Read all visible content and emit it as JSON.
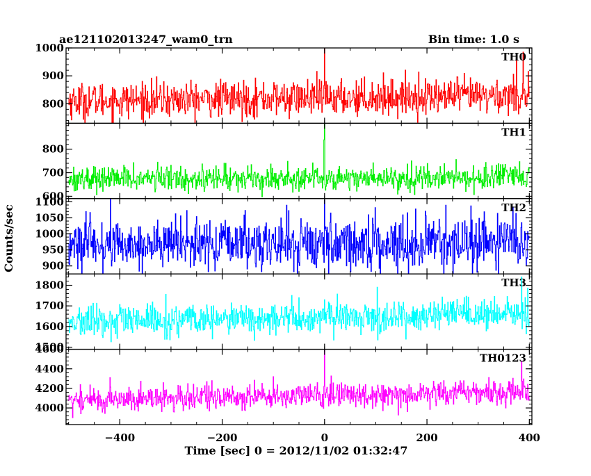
{
  "header": {
    "title": "ae121102013247_wam0_trn",
    "bin_time": "Bin time: 1.0 s"
  },
  "chart_data": {
    "type": "line",
    "xlabel": "Time [sec] 0 = 2012/11/02 01:32:47",
    "ylabel": "Counts/sec",
    "xlim": [
      -505,
      405
    ],
    "x_ticks": [
      -400,
      -200,
      0,
      200,
      400
    ],
    "x_tick_labels": [
      "−400",
      "−200",
      "0",
      "200",
      "400"
    ],
    "bin_seconds": 1.0,
    "x_range": [
      -500,
      400
    ],
    "panels": [
      {
        "name": "TH0",
        "color": "#ff0000",
        "ylim": [
          730,
          1000
        ],
        "y_ticks": [
          800,
          900,
          1000
        ],
        "y_tick_labels": [
          "800",
          "900",
          "1000"
        ],
        "mean_start": 810,
        "mean_end": 830,
        "noise": 32,
        "spikes": [
          {
            "x": 0,
            "y": 1000
          },
          {
            "x": 375,
            "y": 960
          },
          {
            "x": 388,
            "y": 985
          }
        ]
      },
      {
        "name": "TH1",
        "color": "#00ee00",
        "ylim": [
          590,
          910
        ],
        "y_ticks": [
          600,
          700,
          800
        ],
        "y_tick_labels": [
          "600",
          "700",
          "800"
        ],
        "mean_start": 675,
        "mean_end": 680,
        "noise": 26,
        "spikes": [
          {
            "x": 0,
            "y": 905
          },
          {
            "x": -1,
            "y": 840
          }
        ]
      },
      {
        "name": "TH2",
        "color": "#0000ff",
        "ylim": [
          875,
          1110
        ],
        "y_ticks": [
          900,
          950,
          1000,
          1050,
          1100
        ],
        "y_tick_labels": [
          "900",
          "950",
          "1000",
          "1050",
          "1100"
        ],
        "mean_start": 965,
        "mean_end": 975,
        "noise": 40,
        "spikes": [
          {
            "x": 0,
            "y": 1105
          }
        ]
      },
      {
        "name": "TH3",
        "color": "#00ffff",
        "ylim": [
          1490,
          1855
        ],
        "y_ticks": [
          1500,
          1600,
          1700,
          1800
        ],
        "y_tick_labels": [
          "1500",
          "1600",
          "1700",
          "1800"
        ],
        "mean_start": 1620,
        "mean_end": 1660,
        "noise": 38,
        "spikes": [
          {
            "x": 385,
            "y": 1840
          },
          {
            "x": 0,
            "y": 1730
          }
        ]
      },
      {
        "name": "TH0123",
        "color": "#ff00ff",
        "ylim": [
          3830,
          4600
        ],
        "y_ticks": [
          4000,
          4200,
          4400,
          4600
        ],
        "y_tick_labels": [
          "4000",
          "4200",
          "4400",
          "4600"
        ],
        "mean_start": 4080,
        "mean_end": 4170,
        "noise": 65,
        "spikes": [
          {
            "x": 0,
            "y": 4590
          },
          {
            "x": 385,
            "y": 4480
          }
        ]
      }
    ]
  }
}
